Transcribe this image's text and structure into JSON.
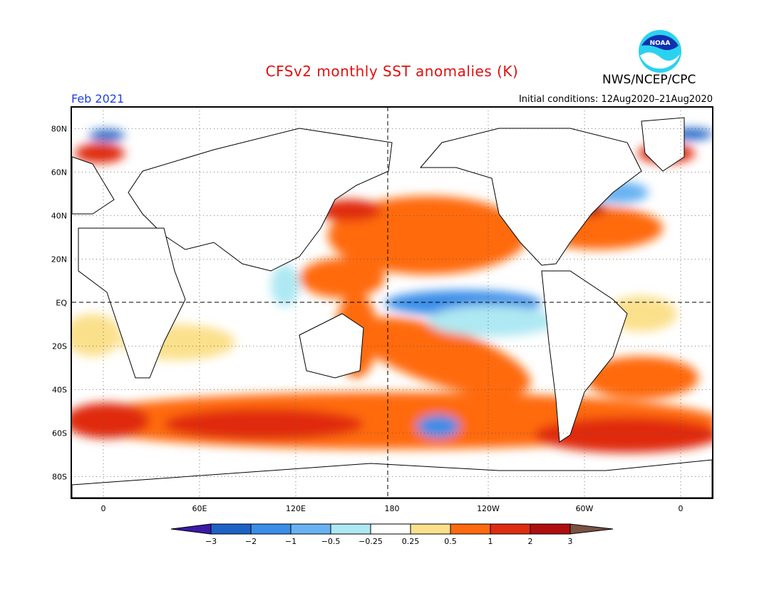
{
  "title": "CFSv2 monthly SST anomalies (K)",
  "agency": "NWS/NCEP/CPC",
  "logo_text": "NOAA",
  "forecast_month": "Feb 2021",
  "initial_conditions": "Initial conditions: 12Aug2020–21Aug2020",
  "map": {
    "projection": "equirectangular",
    "lon_range": [
      -20,
      380
    ],
    "lat_range": [
      -90,
      90
    ],
    "grid_lines": "dotted",
    "reference_lines": [
      "equator",
      "180"
    ],
    "lat_labels": [
      "80N",
      "60N",
      "40N",
      "20N",
      "EQ",
      "20S",
      "40S",
      "60S",
      "80S"
    ],
    "lat_values": [
      80,
      60,
      40,
      20,
      0,
      -20,
      -40,
      -60,
      -80
    ],
    "lon_labels": [
      "0",
      "60E",
      "120E",
      "180",
      "120W",
      "60W",
      "0"
    ],
    "lon_values": [
      0,
      60,
      120,
      180,
      240,
      300,
      360
    ]
  },
  "colorbar": {
    "ticks": [
      "−3",
      "−2",
      "−1",
      "−0.5",
      "−0.25",
      "0.25",
      "0.5",
      "1",
      "2",
      "3"
    ],
    "colors": [
      "#3a1aa8",
      "#1d62c6",
      "#3a8ee8",
      "#68b2f2",
      "#aee8f2",
      "#ffffff",
      "#fbe08c",
      "#ff6a0e",
      "#e02c10",
      "#b00e0e",
      "#7a5242"
    ]
  },
  "anomalies": [
    {
      "region": "equatorial-east-pacific",
      "value": -0.7,
      "lon": [
        190,
        270
      ],
      "lat": [
        -6,
        3
      ]
    },
    {
      "region": "east-pacific-south",
      "value": -0.35,
      "lon": [
        200,
        275
      ],
      "lat": [
        -18,
        -5
      ]
    },
    {
      "region": "north-pacific-central",
      "value": 1.3,
      "lon": [
        190,
        230
      ],
      "lat": [
        20,
        50
      ]
    },
    {
      "region": "north-pacific-west",
      "value": 1.3,
      "lon": [
        145,
        180
      ],
      "lat": [
        8,
        22
      ]
    },
    {
      "region": "kuroshio",
      "value": 2.5,
      "lon": [
        150,
        165
      ],
      "lat": [
        36,
        44
      ]
    },
    {
      "region": "south-pacific-band",
      "value": 1.4,
      "lon": [
        165,
        250
      ],
      "lat": [
        -35,
        -10
      ]
    },
    {
      "region": "southern-ocean",
      "value": 1.8,
      "lon": [
        -20,
        380
      ],
      "lat": [
        -68,
        -40
      ]
    },
    {
      "region": "south-pacific-cool",
      "value": -1.1,
      "lon": [
        190,
        225
      ],
      "lat": [
        -63,
        -52
      ]
    },
    {
      "region": "north-atlantic",
      "value": 1.2,
      "lon": [
        280,
        340
      ],
      "lat": [
        30,
        45
      ]
    },
    {
      "region": "subpolar-atlantic",
      "value": -0.8,
      "lon": [
        305,
        335
      ],
      "lat": [
        45,
        58
      ]
    },
    {
      "region": "greenland-sea",
      "value": 2.5,
      "lon": [
        300,
        355
      ],
      "lat": [
        60,
        72
      ]
    },
    {
      "region": "barents-sea",
      "value": -1.3,
      "lon": [
        360,
        380
      ],
      "lat": [
        70,
        78
      ]
    },
    {
      "region": "indian-ocean-south",
      "value": 0.7,
      "lon": [
        40,
        110
      ],
      "lat": [
        -30,
        -12
      ]
    },
    {
      "region": "south-atlantic",
      "value": 0.6,
      "lon": [
        -20,
        10
      ],
      "lat": [
        -30,
        -5
      ]
    }
  ]
}
